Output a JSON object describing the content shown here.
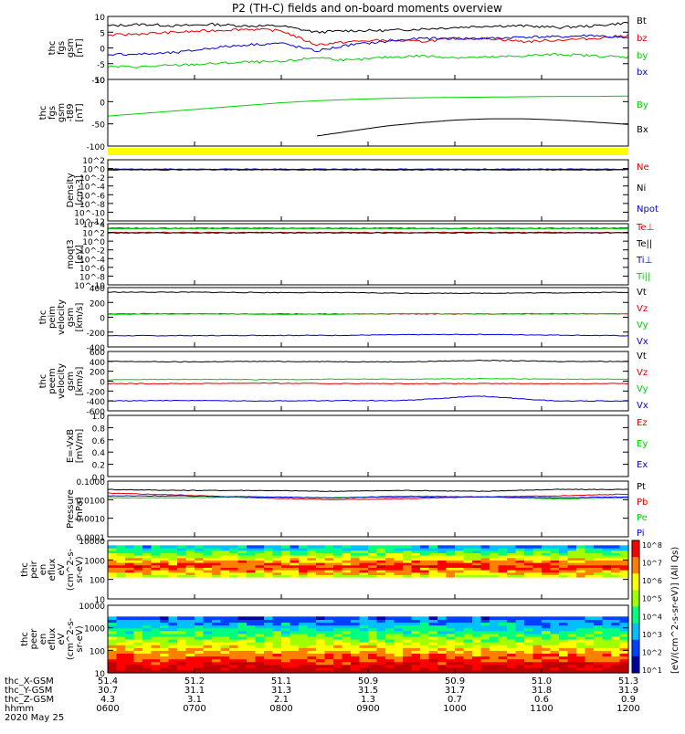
{
  "title": "P2 (TH-C) fields and on-board moments overview",
  "colors": {
    "black": "#000000",
    "red": "#e00000",
    "green": "#00d000",
    "blue": "#0000e0",
    "yellow": "#ffff00",
    "orange": "#ff8000"
  },
  "chart_data": [
    {
      "id": "fgs",
      "type": "line",
      "ylabel": [
        "thc",
        "fgs",
        "gsm",
        "[nT]"
      ],
      "ylim": [
        -10,
        10
      ],
      "yticks": [
        "10",
        "5",
        "0",
        "-5",
        "-10"
      ],
      "series": [
        {
          "name": "Bt",
          "color": "black",
          "values": [
            7,
            7.5,
            7,
            7.5,
            7,
            7,
            5,
            5.5,
            5.5,
            6,
            6.5,
            7,
            7,
            6.5,
            7,
            8
          ]
        },
        {
          "name": "bz",
          "color": "red",
          "values": [
            4,
            4.5,
            5,
            5.5,
            6,
            5.5,
            1,
            2,
            2.5,
            2,
            3,
            3,
            2,
            2.5,
            3,
            4
          ]
        },
        {
          "name": "by",
          "color": "green",
          "values": [
            -6,
            -6,
            -5.5,
            -5,
            -4.5,
            -4.5,
            -3,
            -4,
            -3,
            -2.5,
            -3,
            -3,
            -2.5,
            -2,
            -2.5,
            -3
          ]
        },
        {
          "name": "bx",
          "color": "blue",
          "values": [
            -2,
            -2,
            -1.5,
            0,
            1,
            1.5,
            -1,
            1,
            2,
            3,
            3,
            3,
            3.5,
            3.5,
            4,
            3
          ]
        }
      ]
    },
    {
      "id": "fgs_t89",
      "type": "line",
      "ylabel": [
        "thc",
        "fgs",
        "gsm",
        "-t89",
        "[nT]"
      ],
      "ylim": [
        -130,
        70
      ],
      "yticks": [
        "50",
        "0",
        "-50",
        "-100"
      ],
      "series": [
        {
          "name": "By",
          "color": "green",
          "values": [
            -40,
            -32,
            -24,
            -16,
            -8,
            0,
            6,
            10,
            13,
            15,
            16,
            17,
            18,
            19,
            19,
            20
          ]
        },
        {
          "name": "Bx",
          "color": "black",
          "values": [
            null,
            null,
            null,
            null,
            null,
            null,
            -100,
            -85,
            -70,
            -60,
            -52,
            -48,
            -48,
            -52,
            -58,
            -65
          ]
        }
      ]
    },
    {
      "id": "density",
      "type": "line",
      "ylabel": [
        "Density",
        "[cm-3]"
      ],
      "ylim": [
        -14,
        3
      ],
      "log": true,
      "yticks": [
        "10^2",
        "10^0",
        "10^-2",
        "10^-4",
        "10^-6",
        "10^-8",
        "10^-10",
        "10^-12"
      ],
      "series": [
        {
          "name": "Ne",
          "color": "red",
          "values": [
            0.3,
            0.3,
            0.3,
            0.3,
            0.3,
            0.3,
            0.3,
            0.3
          ]
        },
        {
          "name": "Ni",
          "color": "black",
          "values": [
            0.2,
            0.2,
            0.2,
            0.2,
            0.2,
            0.2,
            0.2,
            0.2
          ]
        },
        {
          "name": "Npot",
          "color": "blue",
          "values": [
            0.4,
            0.4,
            0.4,
            0.4,
            0.4,
            0.4,
            0.4,
            0.4
          ]
        }
      ]
    },
    {
      "id": "temp",
      "type": "line",
      "ylabel": [
        "moqt3",
        "[eV]"
      ],
      "ylim": [
        -12,
        4
      ],
      "log": true,
      "yticks": [
        "10^4",
        "10^2",
        "10^0",
        "10^-2",
        "10^-4",
        "10^-6",
        "10^-8",
        "10^-10"
      ],
      "series": [
        {
          "name": "Te⊥",
          "color": "red",
          "values": [
            1.7,
            1.7,
            1.7,
            1.7,
            1.7,
            1.7,
            1.7,
            1.7
          ]
        },
        {
          "name": "Te||",
          "color": "black",
          "values": [
            1.6,
            1.6,
            1.6,
            1.6,
            1.6,
            1.6,
            1.6,
            1.6
          ]
        },
        {
          "name": "Ti⊥",
          "color": "blue",
          "values": [
            2.8,
            2.8,
            2.8,
            2.8,
            2.8,
            2.8,
            2.8,
            2.8
          ]
        },
        {
          "name": "Ti||",
          "color": "green",
          "values": [
            2.7,
            2.7,
            2.7,
            2.7,
            2.7,
            2.7,
            2.7,
            2.7
          ]
        }
      ]
    },
    {
      "id": "peim",
      "type": "line",
      "ylabel": [
        "thc",
        "peim",
        "velocity",
        "gsm",
        "[km/s]"
      ],
      "ylim": [
        -500,
        400
      ],
      "yticks": [
        "400",
        "200",
        "0",
        "-200",
        "-400"
      ],
      "series": [
        {
          "name": "Vt",
          "color": "black",
          "values": [
            330,
            330,
            325,
            325,
            315,
            315,
            320,
            330
          ]
        },
        {
          "name": "Vz",
          "color": "red",
          "values": [
            0,
            5,
            0,
            0,
            0,
            0,
            5,
            0
          ]
        },
        {
          "name": "Vy",
          "color": "green",
          "values": [
            -5,
            0,
            -5,
            -5,
            5,
            0,
            0,
            5
          ]
        },
        {
          "name": "Vx",
          "color": "blue",
          "values": [
            -330,
            -330,
            -325,
            -325,
            -315,
            -310,
            -320,
            -330
          ]
        }
      ]
    },
    {
      "id": "peem",
      "type": "line",
      "ylabel": [
        "thc",
        "peem",
        "velocity",
        "gsm",
        "[km/s]"
      ],
      "ylim": [
        -600,
        600
      ],
      "yticks": [
        "600",
        "400",
        "200",
        "0",
        "-200",
        "-400",
        "-600"
      ],
      "series": [
        {
          "name": "Vt",
          "color": "black",
          "values": [
            400,
            390,
            400,
            395,
            390,
            420,
            400,
            400
          ]
        },
        {
          "name": "Vz",
          "color": "red",
          "values": [
            -50,
            -50,
            -40,
            -50,
            -50,
            -50,
            -50,
            -50
          ]
        },
        {
          "name": "Vy",
          "color": "green",
          "values": [
            30,
            40,
            30,
            40,
            40,
            50,
            40,
            40
          ]
        },
        {
          "name": "Vx",
          "color": "blue",
          "values": [
            -400,
            -390,
            -400,
            -395,
            -390,
            -300,
            -400,
            -400
          ]
        }
      ]
    },
    {
      "id": "efield",
      "type": "line",
      "ylabel": [
        "E=-VxB",
        "[mV/m]"
      ],
      "ylim": [
        0,
        1
      ],
      "yticks": [
        "1.0",
        "0.8",
        "0.6",
        "0.4",
        "0.2",
        "0.0"
      ],
      "series": [
        {
          "name": "Ez",
          "color": "red",
          "values": []
        },
        {
          "name": "Ey",
          "color": "green",
          "values": []
        },
        {
          "name": "Ex",
          "color": "blue",
          "values": []
        }
      ]
    },
    {
      "id": "pressure",
      "type": "line",
      "ylabel": [
        "Pressure",
        "[nPa]"
      ],
      "ylim": [
        -4,
        -1
      ],
      "log": true,
      "yticks": [
        "0.1000",
        "0.0100",
        "0.0010",
        "0.0001"
      ],
      "series": [
        {
          "name": "Pt",
          "color": "black",
          "values": [
            -1.45,
            -1.5,
            -1.5,
            -1.55,
            -1.5,
            -1.55,
            -1.45,
            -1.45
          ]
        },
        {
          "name": "Pb",
          "color": "red",
          "values": [
            -1.65,
            -1.75,
            -1.9,
            -2.0,
            -1.95,
            -1.85,
            -1.8,
            -1.7
          ]
        },
        {
          "name": "Pe",
          "color": "green",
          "values": [
            -1.9,
            -1.9,
            -1.85,
            -1.9,
            -1.8,
            -1.85,
            -1.95,
            -1.9
          ]
        },
        {
          "name": "Pi",
          "color": "blue",
          "values": [
            -1.8,
            -1.8,
            -1.85,
            -1.9,
            -1.85,
            -1.85,
            -1.9,
            -1.85
          ]
        }
      ]
    },
    {
      "id": "peir",
      "type": "heatmap",
      "ylabel": [
        "thc",
        "peir",
        "en",
        "eflux",
        "eV",
        "(cm^2-s-",
        "sr-eV)"
      ],
      "ylim": [
        1,
        4.3
      ],
      "log": true,
      "yticks": [
        "10000",
        "1000",
        "100",
        "10"
      ]
    },
    {
      "id": "peer",
      "type": "heatmap",
      "ylabel": [
        "thc",
        "peer",
        "en",
        "eflux",
        "eV",
        "(cm^2-s-",
        "sr-eV)"
      ],
      "ylim": [
        0.8,
        4.3
      ],
      "log": true,
      "yticks": [
        "10000",
        "1000",
        "100",
        "10"
      ]
    }
  ],
  "colorbar": {
    "label": "[eV/(cm^2-s-sr-eV)] (All Qs)",
    "ticks": [
      "10^8",
      "10^7",
      "10^6",
      "10^5",
      "10^4",
      "10^3",
      "10^2",
      "10^1"
    ]
  },
  "x_axis": {
    "row_labels": [
      "thc_X-GSM",
      "thc_Y-GSM",
      "thc_Z-GSM",
      "hhmm",
      "2020 May 25"
    ],
    "columns": [
      {
        "x": "51.4",
        "y": "30.7",
        "z": "4.3",
        "time": "0600"
      },
      {
        "x": "51.2",
        "y": "31.1",
        "z": "3.1",
        "time": "0700"
      },
      {
        "x": "51.1",
        "y": "31.3",
        "z": "2.1",
        "time": "0800"
      },
      {
        "x": "50.9",
        "y": "31.5",
        "z": "1.3",
        "time": "0900"
      },
      {
        "x": "50.9",
        "y": "31.7",
        "z": "0.7",
        "time": "1000"
      },
      {
        "x": "51.0",
        "y": "31.8",
        "z": "0.6",
        "time": "1100"
      },
      {
        "x": "51.3",
        "y": "31.9",
        "z": "0.9",
        "time": "1200"
      }
    ]
  }
}
